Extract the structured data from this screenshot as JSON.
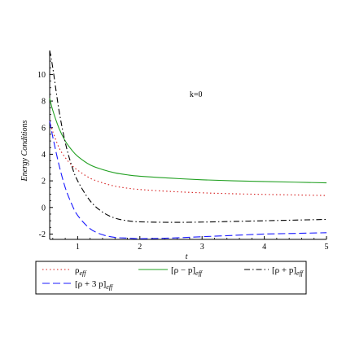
{
  "chart_data": {
    "type": "line",
    "title": "",
    "xlabel": "t",
    "ylabel": "Energy Conditions",
    "xlim": [
      0.55,
      5.0
    ],
    "ylim": [
      -2.4,
      11.8
    ],
    "xticks": [
      1,
      2,
      3,
      4,
      5
    ],
    "yticks": [
      -2,
      0,
      2,
      4,
      6,
      8,
      10
    ],
    "annotations": [
      {
        "text": "k=0",
        "x": 2.8,
        "y": 8.3
      }
    ],
    "grid": false,
    "legend_position": "bottom",
    "x": [
      0.55,
      0.6,
      0.7,
      0.8,
      0.9,
      1.0,
      1.2,
      1.4,
      1.6,
      1.8,
      2.0,
      2.5,
      3.0,
      3.5,
      4.0,
      4.5,
      5.0
    ],
    "series": [
      {
        "name": "ρ_eff",
        "label_main": "ρ",
        "label_sub": "eff",
        "color": "#d62020",
        "dash": "dotted",
        "values": [
          6.5,
          5.7,
          4.5,
          3.75,
          3.2,
          2.8,
          2.2,
          1.85,
          1.6,
          1.45,
          1.35,
          1.2,
          1.1,
          1.03,
          0.98,
          0.94,
          0.9
        ]
      },
      {
        "name": "[ρ − p]_eff",
        "label_main": "[ρ − p]",
        "label_sub": "eff",
        "color": "#22a022",
        "dash": "solid",
        "values": [
          8.2,
          7.3,
          5.95,
          5.0,
          4.35,
          3.85,
          3.2,
          2.85,
          2.6,
          2.45,
          2.35,
          2.2,
          2.08,
          2.0,
          1.95,
          1.9,
          1.85
        ]
      },
      {
        "name": "[ρ + p]_eff",
        "label_main": "[ρ + p]",
        "label_sub": "eff",
        "color": "#000000",
        "dash": "dashdot",
        "values": [
          11.8,
          10.5,
          7.3,
          4.9,
          3.2,
          2.0,
          0.5,
          -0.35,
          -0.8,
          -1.0,
          -1.08,
          -1.12,
          -1.1,
          -1.05,
          -1.0,
          -0.95,
          -0.9
        ]
      },
      {
        "name": "[ρ + 3 p]_eff",
        "label_main": "[ρ + 3 p]",
        "label_sub": "eff",
        "color": "#1a1aff",
        "dash": "dashed",
        "values": [
          6.5,
          5.3,
          3.2,
          1.5,
          0.3,
          -0.6,
          -1.6,
          -2.05,
          -2.25,
          -2.3,
          -2.35,
          -2.3,
          -2.2,
          -2.1,
          -2.0,
          -1.95,
          -1.9
        ]
      }
    ]
  }
}
